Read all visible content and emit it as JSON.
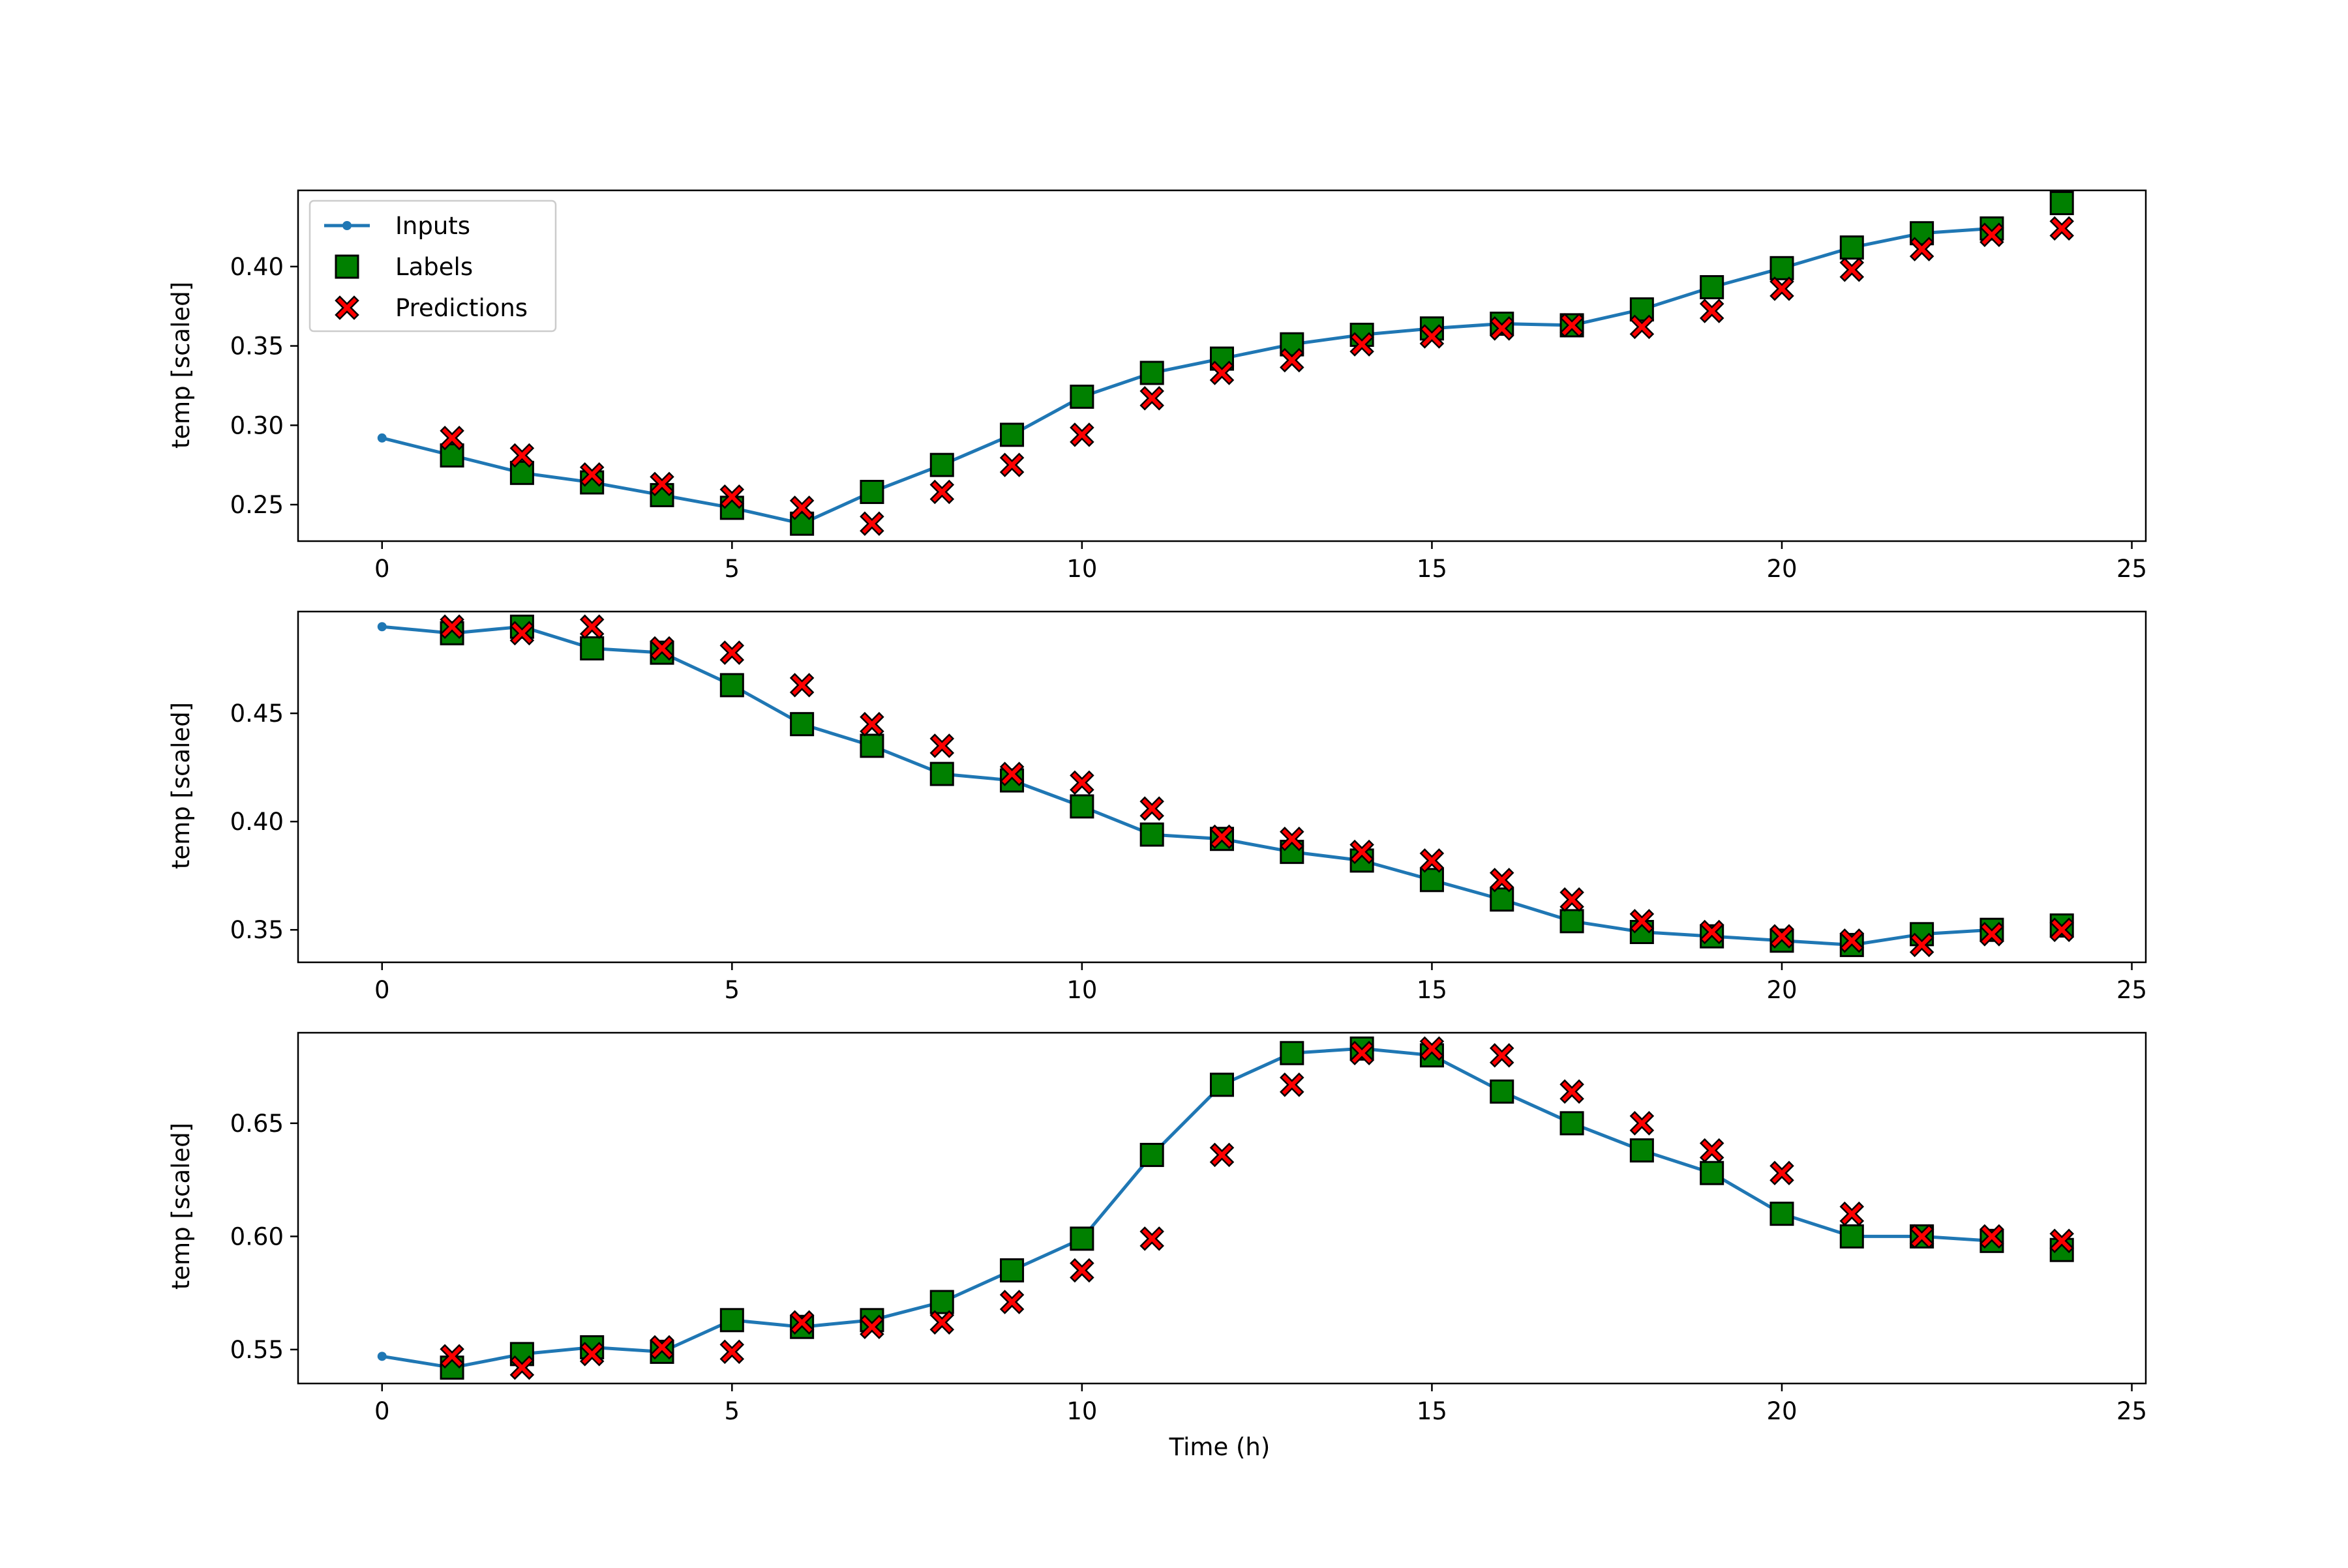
{
  "chart_data": {
    "type": "line",
    "legend": {
      "placement": "upper-left of first panel",
      "entries": [
        "Inputs",
        "Labels",
        "Predictions"
      ]
    },
    "colors": {
      "inputs": "#1f77b4",
      "labels": "#008000",
      "predictions": "#ff0000",
      "marker_edge": "#000000"
    },
    "xlabel": "Time (h)",
    "ylabel": "temp [scaled]",
    "xlim": [
      -1.2,
      25.2
    ],
    "xticks": [
      0,
      5,
      10,
      15,
      20,
      25
    ],
    "grid": false,
    "panels": [
      {
        "ylim": [
          0.227,
          0.448
        ],
        "yticks": [
          0.25,
          0.3,
          0.35,
          0.4
        ],
        "ytick_labels": [
          "0.25",
          "0.30",
          "0.35",
          "0.40"
        ],
        "xtick_labels": [
          "0",
          "5",
          "10",
          "15",
          "20",
          "25"
        ],
        "series": [
          {
            "name": "Inputs",
            "kind": "line",
            "x": [
              0,
              1,
              2,
              3,
              4,
              5,
              6,
              7,
              8,
              9,
              10,
              11,
              12,
              13,
              14,
              15,
              16,
              17,
              18,
              19,
              20,
              21,
              22,
              23
            ],
            "values": [
              0.292,
              0.281,
              0.27,
              0.264,
              0.256,
              0.248,
              0.238,
              0.258,
              0.275,
              0.294,
              0.318,
              0.333,
              0.342,
              0.351,
              0.357,
              0.361,
              0.364,
              0.363,
              0.373,
              0.387,
              0.399,
              0.412,
              0.421,
              0.424
            ]
          },
          {
            "name": "Labels",
            "kind": "square",
            "x": [
              1,
              2,
              3,
              4,
              5,
              6,
              7,
              8,
              9,
              10,
              11,
              12,
              13,
              14,
              15,
              16,
              17,
              18,
              19,
              20,
              21,
              22,
              23,
              24
            ],
            "values": [
              0.281,
              0.27,
              0.264,
              0.256,
              0.248,
              0.238,
              0.258,
              0.275,
              0.294,
              0.318,
              0.333,
              0.342,
              0.351,
              0.357,
              0.361,
              0.364,
              0.363,
              0.373,
              0.387,
              0.399,
              0.412,
              0.421,
              0.424,
              0.44
            ]
          },
          {
            "name": "Predictions",
            "kind": "x",
            "x": [
              1,
              2,
              3,
              4,
              5,
              6,
              7,
              8,
              9,
              10,
              11,
              12,
              13,
              14,
              15,
              16,
              17,
              18,
              19,
              20,
              21,
              22,
              23,
              24
            ],
            "values": [
              0.292,
              0.281,
              0.269,
              0.263,
              0.255,
              0.248,
              0.238,
              0.258,
              0.275,
              0.294,
              0.317,
              0.333,
              0.341,
              0.351,
              0.356,
              0.361,
              0.363,
              0.362,
              0.372,
              0.386,
              0.398,
              0.411,
              0.42,
              0.424
            ]
          }
        ]
      },
      {
        "ylim": [
          0.335,
          0.497
        ],
        "yticks": [
          0.35,
          0.4,
          0.45
        ],
        "ytick_labels": [
          "0.35",
          "0.40",
          "0.45"
        ],
        "xtick_labels": [
          "0",
          "5",
          "10",
          "15",
          "20",
          "25"
        ],
        "series": [
          {
            "name": "Inputs",
            "kind": "line",
            "x": [
              0,
              1,
              2,
              3,
              4,
              5,
              6,
              7,
              8,
              9,
              10,
              11,
              12,
              13,
              14,
              15,
              16,
              17,
              18,
              19,
              20,
              21,
              22,
              23
            ],
            "values": [
              0.49,
              0.487,
              0.49,
              0.48,
              0.478,
              0.463,
              0.445,
              0.435,
              0.422,
              0.419,
              0.407,
              0.394,
              0.392,
              0.386,
              0.382,
              0.373,
              0.364,
              0.354,
              0.349,
              0.347,
              0.345,
              0.343,
              0.348,
              0.35
            ]
          },
          {
            "name": "Labels",
            "kind": "square",
            "x": [
              1,
              2,
              3,
              4,
              5,
              6,
              7,
              8,
              9,
              10,
              11,
              12,
              13,
              14,
              15,
              16,
              17,
              18,
              19,
              20,
              21,
              22,
              23,
              24
            ],
            "values": [
              0.487,
              0.49,
              0.48,
              0.478,
              0.463,
              0.445,
              0.435,
              0.422,
              0.419,
              0.407,
              0.394,
              0.392,
              0.386,
              0.382,
              0.373,
              0.364,
              0.354,
              0.349,
              0.347,
              0.345,
              0.343,
              0.348,
              0.35,
              0.352
            ]
          },
          {
            "name": "Predictions",
            "kind": "x",
            "x": [
              1,
              2,
              3,
              4,
              5,
              6,
              7,
              8,
              9,
              10,
              11,
              12,
              13,
              14,
              15,
              16,
              17,
              18,
              19,
              20,
              21,
              22,
              23,
              24
            ],
            "values": [
              0.49,
              0.487,
              0.49,
              0.48,
              0.478,
              0.463,
              0.445,
              0.435,
              0.422,
              0.418,
              0.406,
              0.393,
              0.392,
              0.386,
              0.382,
              0.373,
              0.364,
              0.354,
              0.349,
              0.347,
              0.345,
              0.343,
              0.348,
              0.35
            ]
          }
        ]
      },
      {
        "ylim": [
          0.535,
          0.69
        ],
        "yticks": [
          0.55,
          0.6,
          0.65
        ],
        "ytick_labels": [
          "0.55",
          "0.60",
          "0.65"
        ],
        "xtick_labels": [
          "0",
          "5",
          "10",
          "15",
          "20",
          "25"
        ],
        "series": [
          {
            "name": "Inputs",
            "kind": "line",
            "x": [
              0,
              1,
              2,
              3,
              4,
              5,
              6,
              7,
              8,
              9,
              10,
              11,
              12,
              13,
              14,
              15,
              16,
              17,
              18,
              19,
              20,
              21,
              22,
              23
            ],
            "values": [
              0.547,
              0.542,
              0.548,
              0.551,
              0.549,
              0.563,
              0.56,
              0.563,
              0.571,
              0.585,
              0.599,
              0.636,
              0.667,
              0.681,
              0.683,
              0.68,
              0.664,
              0.65,
              0.638,
              0.628,
              0.61,
              0.6,
              0.6,
              0.598
            ]
          },
          {
            "name": "Labels",
            "kind": "square",
            "x": [
              1,
              2,
              3,
              4,
              5,
              6,
              7,
              8,
              9,
              10,
              11,
              12,
              13,
              14,
              15,
              16,
              17,
              18,
              19,
              20,
              21,
              22,
              23,
              24
            ],
            "values": [
              0.542,
              0.548,
              0.551,
              0.549,
              0.563,
              0.56,
              0.563,
              0.571,
              0.585,
              0.599,
              0.636,
              0.667,
              0.681,
              0.683,
              0.68,
              0.664,
              0.65,
              0.638,
              0.628,
              0.61,
              0.6,
              0.6,
              0.598,
              0.594
            ]
          },
          {
            "name": "Predictions",
            "kind": "x",
            "x": [
              1,
              2,
              3,
              4,
              5,
              6,
              7,
              8,
              9,
              10,
              11,
              12,
              13,
              14,
              15,
              16,
              17,
              18,
              19,
              20,
              21,
              22,
              23,
              24
            ],
            "values": [
              0.547,
              0.542,
              0.548,
              0.551,
              0.549,
              0.562,
              0.56,
              0.562,
              0.571,
              0.585,
              0.599,
              0.636,
              0.667,
              0.681,
              0.683,
              0.68,
              0.664,
              0.65,
              0.638,
              0.628,
              0.61,
              0.6,
              0.6,
              0.598
            ]
          }
        ]
      }
    ]
  }
}
